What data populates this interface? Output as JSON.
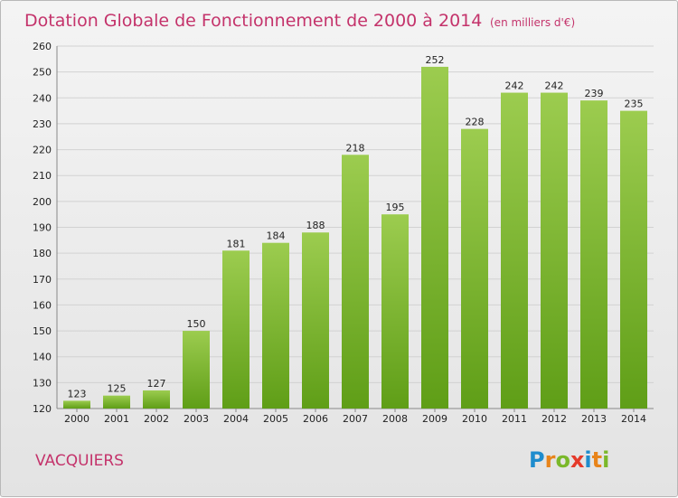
{
  "chart_data": {
    "type": "bar",
    "title": "Dotation Globale de Fonctionnement de 2000 à 2014",
    "subtitle": "(en milliers d'€)",
    "categories": [
      "2000",
      "2001",
      "2002",
      "2003",
      "2004",
      "2005",
      "2006",
      "2007",
      "2008",
      "2009",
      "2010",
      "2011",
      "2012",
      "2013",
      "2014"
    ],
    "values": [
      123,
      125,
      127,
      150,
      181,
      184,
      188,
      218,
      195,
      252,
      228,
      242,
      242,
      239,
      235
    ],
    "yticks": [
      120,
      130,
      140,
      150,
      160,
      170,
      180,
      190,
      200,
      210,
      220,
      230,
      240,
      250,
      260
    ],
    "ylim": [
      120,
      260
    ],
    "grid": true,
    "bar_color": "#7ab82a",
    "grid_color": "#d2d2d2"
  },
  "footer": {
    "town": "VACQUIERS",
    "logo_letters": [
      {
        "ch": "P",
        "color": "#1e8ccd"
      },
      {
        "ch": "r",
        "color": "#e8841a"
      },
      {
        "ch": "o",
        "color": "#7ab82a"
      },
      {
        "ch": "x",
        "color": "#e53a2a"
      },
      {
        "ch": "i",
        "color": "#1e8ccd"
      },
      {
        "ch": "t",
        "color": "#e8841a"
      },
      {
        "ch": "i",
        "color": "#7ab82a"
      }
    ]
  }
}
